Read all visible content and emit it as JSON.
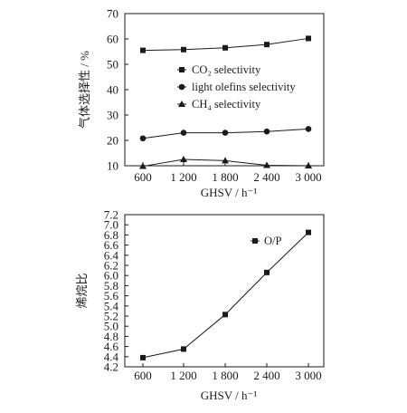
{
  "chart_data": [
    {
      "type": "line",
      "categories": [
        "600",
        "1 200",
        "1 800",
        "2 400",
        "3 000"
      ],
      "x": [
        600,
        1200,
        1800,
        2400,
        3000
      ],
      "xlabel": "GHSV / h⁻¹",
      "ylabel": "气体选择性 / %",
      "ylim": [
        10,
        70
      ],
      "yticks": [
        "10",
        "20",
        "30",
        "40",
        "50",
        "60",
        "70"
      ],
      "series": [
        {
          "name": "CO₂ selectivity",
          "marker": "square",
          "values": [
            55.5,
            55.8,
            56.5,
            57.8,
            60.2
          ]
        },
        {
          "name": "light olefins selectivity",
          "marker": "circle",
          "values": [
            20.8,
            23.0,
            23.0,
            23.5,
            24.5
          ]
        },
        {
          "name": "CH₄ selectivity",
          "marker": "triangle",
          "values": [
            9.8,
            12.5,
            12.0,
            10.2,
            10.0
          ]
        }
      ],
      "legend": "center"
    },
    {
      "type": "line",
      "categories": [
        "600",
        "1 200",
        "1 800",
        "2 400",
        "3 000"
      ],
      "x": [
        600,
        1200,
        1800,
        2400,
        3000
      ],
      "xlabel": "GHSV / h⁻¹",
      "ylabel": "烯烷比",
      "ylim": [
        4.2,
        7.2
      ],
      "yticks": [
        "4.2",
        "4.4",
        "4.6",
        "4.8",
        "5.0",
        "5.2",
        "5.4",
        "5.6",
        "5.8",
        "6.0",
        "6.2",
        "6.4",
        "6.6",
        "6.8",
        "7.0",
        "7.2"
      ],
      "series": [
        {
          "name": "O/P",
          "marker": "square",
          "values": [
            4.38,
            4.55,
            5.23,
            6.06,
            6.85
          ]
        }
      ],
      "legend": "top-left"
    }
  ]
}
